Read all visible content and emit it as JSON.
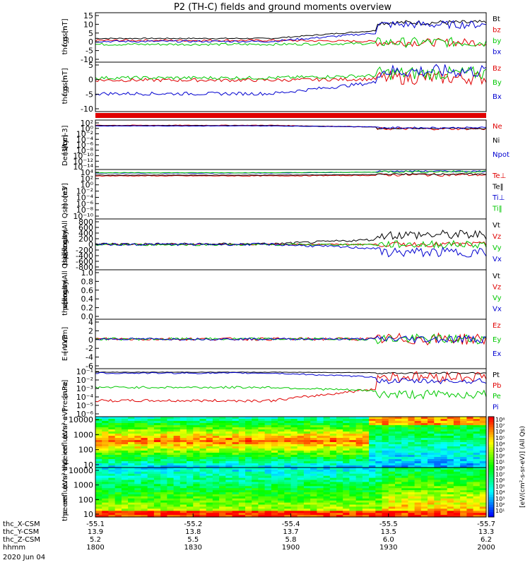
{
  "title": "P2 (TH-C) fields and ground moments overview",
  "colors": {
    "black": "#000000",
    "red": "#e00000",
    "green": "#00c800",
    "blue": "#0000d0",
    "purple": "#6000a0"
  },
  "chart_data": [
    {
      "id": "fgs_total",
      "type": "line",
      "ylabel_lines": [
        "thc",
        "fgs",
        "gsm",
        "[nT]"
      ],
      "yticks": [
        "15",
        "10",
        "5",
        "0",
        "-5",
        "-10"
      ],
      "ylim": [
        -10,
        15
      ],
      "series": [
        {
          "name": "Bt",
          "color": "black",
          "base": 2,
          "late": 10,
          "noise": 1.2
        },
        {
          "name": "bz",
          "color": "red",
          "base": 1,
          "late": 0,
          "noise": 2
        },
        {
          "name": "by",
          "color": "green",
          "base": -1,
          "late": 0,
          "noise": 2.5
        },
        {
          "name": "bx",
          "color": "blue",
          "base": 0.5,
          "late": 9,
          "noise": 2
        }
      ]
    },
    {
      "id": "fgs_comp",
      "type": "line",
      "ylabel_lines": [
        "thc",
        "fgs",
        "gsm",
        "[nT]"
      ],
      "yticks": [
        "5",
        "0",
        "-5",
        "-10"
      ],
      "ylim": [
        -14,
        8
      ],
      "series": [
        {
          "name": "Bz",
          "color": "red",
          "base": 0,
          "late": 1,
          "noise": 3
        },
        {
          "name": "By",
          "color": "green",
          "base": 1,
          "late": 3,
          "noise": 3
        },
        {
          "name": "Bx",
          "color": "blue",
          "base": -6,
          "late": 4,
          "noise": 3
        }
      ]
    },
    {
      "id": "density",
      "type": "line",
      "ylabel_lines": [
        "Density",
        "[1/cc]",
        "[cm-3]"
      ],
      "yticks": [
        "10²",
        "10⁰",
        "10⁻²",
        "10⁻⁴",
        "10⁻⁶",
        "10⁻⁸",
        "10⁻¹⁰",
        "10⁻¹²",
        "10⁻¹⁴"
      ],
      "ylim": [
        -14,
        2
      ],
      "series": [
        {
          "name": "Ne",
          "color": "red",
          "base": 0.3,
          "late": -0.8,
          "noise": 0.4
        },
        {
          "name": "Ni",
          "color": "black",
          "base": 0.2,
          "late": -0.7,
          "noise": 0.2
        },
        {
          "name": "Npot",
          "color": "blue",
          "base": 0.1,
          "late": -0.5,
          "noise": 0.3
        }
      ]
    },
    {
      "id": "moment_temp",
      "type": "line",
      "ylabel_lines": [
        "mom3",
        "[eV]"
      ],
      "yticks": [
        "10⁴",
        "10²",
        "10⁰",
        "10⁻²",
        "10⁻⁴",
        "10⁻⁶",
        "10⁻⁸",
        "10⁻¹⁰"
      ],
      "ylim": [
        -10,
        4
      ],
      "series": [
        {
          "name": "Te⊥",
          "color": "red",
          "base": 2.2,
          "late": 2.5,
          "noise": 0.4
        },
        {
          "name": "Te‖",
          "color": "black",
          "base": 2.4,
          "late": 2.7,
          "noise": 0.2
        },
        {
          "name": "Ti⊥",
          "color": "blue",
          "base": 3.0,
          "late": 3.5,
          "noise": 0.2
        },
        {
          "name": "Ti‖",
          "color": "green",
          "base": 3.1,
          "late": 3.4,
          "noise": 0.3
        }
      ]
    },
    {
      "id": "peir_velocity",
      "type": "line",
      "ylabel_lines": [
        "thc",
        "peir",
        "velocity",
        "gsm",
        "[km/s (All Qs)]"
      ],
      "yticks": [
        "800",
        "600",
        "400",
        "200",
        "0",
        "-200",
        "-400",
        "-600",
        "-800"
      ],
      "ylim": [
        -800,
        800
      ],
      "series": [
        {
          "name": "Vt",
          "color": "black",
          "base": 10,
          "late": 300,
          "noise": 150
        },
        {
          "name": "Vz",
          "color": "red",
          "base": 0,
          "late": 0,
          "noise": 80
        },
        {
          "name": "Vy",
          "color": "green",
          "base": -10,
          "late": 0,
          "noise": 120
        },
        {
          "name": "Vx",
          "color": "blue",
          "base": 0,
          "late": -250,
          "noise": 150
        }
      ]
    },
    {
      "id": "peer_velocity",
      "type": "line",
      "ylabel_lines": [
        "thc",
        "peer",
        "velocity",
        "gsm",
        "[km/s (All Qs)]"
      ],
      "yticks": [
        "1.0",
        "0.8",
        "0.6",
        "0.4",
        "0.2",
        "0.0"
      ],
      "ylim": [
        0,
        1
      ],
      "series": [
        {
          "name": "Vt",
          "color": "black"
        },
        {
          "name": "Vz",
          "color": "red"
        },
        {
          "name": "Vy",
          "color": "green"
        },
        {
          "name": "Vx",
          "color": "blue"
        }
      ]
    },
    {
      "id": "efield",
      "type": "line",
      "ylabel_lines": [
        "E=-VxB",
        "[mV/m]"
      ],
      "yticks": [
        "4",
        "2",
        "0",
        "-2",
        "-4",
        "-6"
      ],
      "ylim": [
        -6,
        4
      ],
      "series": [
        {
          "name": "Ez",
          "color": "red",
          "base": 0,
          "late": 0,
          "noise": 1.2
        },
        {
          "name": "Ey",
          "color": "green",
          "base": 0,
          "late": 0,
          "noise": 1.0
        },
        {
          "name": "Ex",
          "color": "blue",
          "base": 0,
          "late": 0,
          "noise": 0.8
        }
      ]
    },
    {
      "id": "pressure",
      "type": "line",
      "ylabel_lines": [
        "Pressure",
        "[nPa]"
      ],
      "yticks": [
        "10⁻¹",
        "10⁻²",
        "10⁻³",
        "10⁻⁴",
        "10⁻⁵",
        "10⁻⁶"
      ],
      "ylim": [
        -6,
        -0.6
      ],
      "series": [
        {
          "name": "Pt",
          "color": "black",
          "base": -1.0,
          "late": -1.1,
          "noise": 0.1
        },
        {
          "name": "Pb",
          "color": "red",
          "base": -4.2,
          "late": -1.5,
          "noise": 0.6
        },
        {
          "name": "Pe",
          "color": "green",
          "base": -2.7,
          "late": -3.5,
          "noise": 0.5
        },
        {
          "name": "Pi",
          "color": "blue",
          "base": -1.1,
          "late": -2.0,
          "noise": 0.3
        }
      ]
    },
    {
      "id": "peir_spec",
      "type": "heatmap",
      "ylabel_lines": [
        "thc",
        "peir",
        "en",
        "eflux",
        "eV",
        "(cm²·s·",
        "sr·eV)"
      ],
      "yticks": [
        "10000",
        "1000",
        "100",
        "10"
      ]
    },
    {
      "id": "peer_spec",
      "type": "heatmap",
      "ylabel_lines": [
        "thc",
        "peer",
        "en",
        "eflux",
        "eV",
        "(cm²·s·",
        "sr·eV)"
      ],
      "yticks": [
        "10000",
        "1000",
        "100",
        "10"
      ]
    }
  ],
  "colorbar": {
    "label": "[eV/(cm²-s-sr-eV)] (All Qs)",
    "ticks": [
      "10⁸",
      "10⁷",
      "10⁶",
      "10⁵",
      "10⁴",
      "10³",
      "10²",
      "10¹",
      "10⁸",
      "10⁷",
      "10⁶",
      "10⁵",
      "10⁴",
      "10³",
      "10²",
      "10¹"
    ]
  },
  "xaxis": {
    "rows": [
      {
        "label": "thc_X-CSM",
        "values": [
          "-55.1",
          "-55.2",
          "-55.4",
          "-55.5",
          "-55.7"
        ]
      },
      {
        "label": "thc_Y-CSM",
        "values": [
          "13.9",
          "13.8",
          "13.7",
          "13.5",
          "13.3"
        ]
      },
      {
        "label": "thc_Z-CSM",
        "values": [
          "5.2",
          "5.5",
          "5.8",
          "6.0",
          "6.2"
        ]
      },
      {
        "label": "hhmm",
        "values": [
          "1800",
          "1830",
          "1900",
          "1930",
          "2000"
        ]
      }
    ],
    "date": "2020 Jun 04"
  }
}
